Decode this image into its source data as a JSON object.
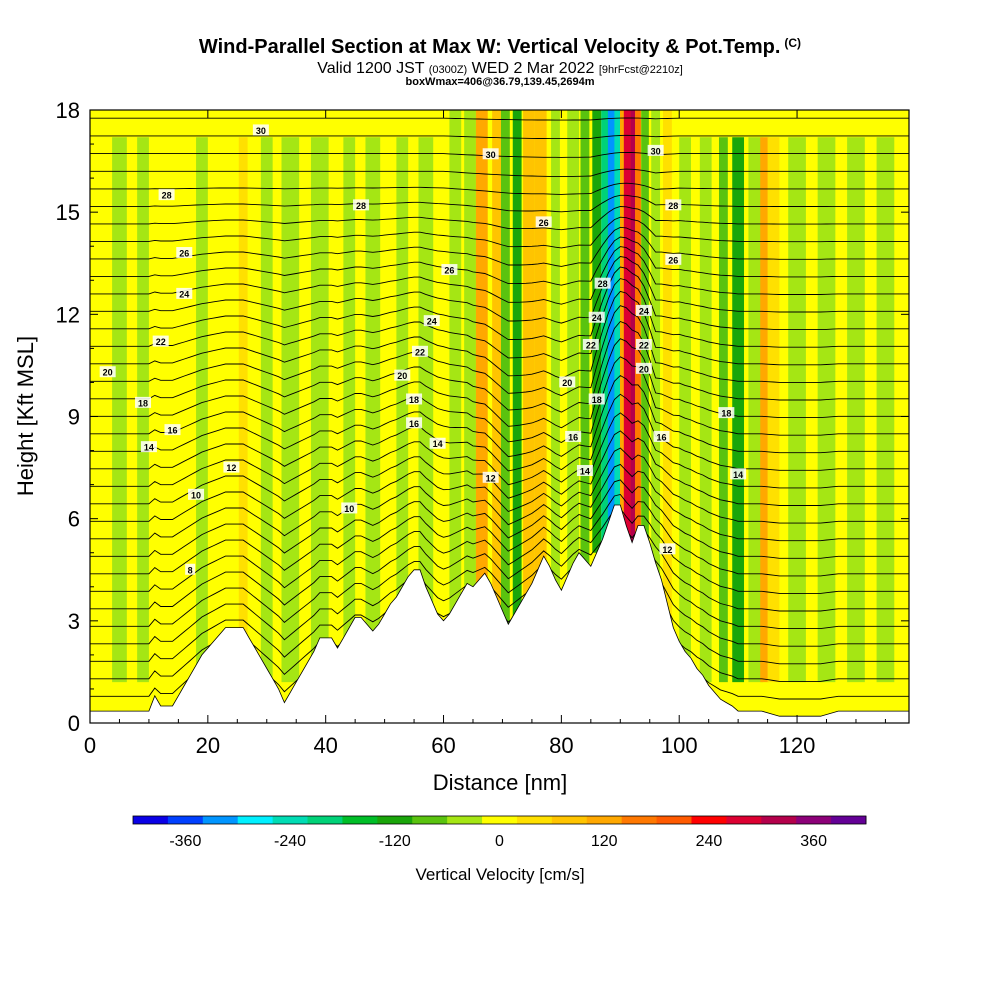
{
  "title": {
    "main": "Wind-Parallel Section at Max W: Vertical Velocity & Pot.Temp.",
    "copyright": "(C)",
    "valid_prefix": "Valid 1200 JST",
    "valid_utc": "(0300Z)",
    "valid_date": "WED 2 Mar 2022",
    "forecast_info": "[9hrFcst@2210z]",
    "box_info": "boxWmax=406@36.79,139.45,2694m"
  },
  "chart_data": {
    "type": "heatmap",
    "xlabel": "Distance [nm]",
    "ylabel": "Height [Kft MSL]",
    "xlim": [
      0,
      139
    ],
    "ylim": [
      0,
      18
    ],
    "x_ticks": [
      "0",
      "20",
      "40",
      "60",
      "80",
      "100",
      "120"
    ],
    "y_ticks": [
      "0",
      "3",
      "6",
      "9",
      "12",
      "15",
      "18"
    ],
    "colorbar": {
      "label": "Vertical Velocity [cm/s]",
      "tick_labels": [
        "-360",
        "-240",
        "-120",
        "0",
        "120",
        "240",
        "360"
      ],
      "colors": [
        "#0a00e6",
        "#0040ff",
        "#0095ff",
        "#00f0ff",
        "#00dcb4",
        "#00d278",
        "#00be28",
        "#1aa50a",
        "#5ac30f",
        "#a5e614",
        "#ffff00",
        "#ffe000",
        "#ffc400",
        "#ffa800",
        "#ff7800",
        "#ff5a00",
        "#ff0000",
        "#dc0032",
        "#b4004b",
        "#8c0078",
        "#640096"
      ]
    },
    "contour_labels": [
      {
        "text": "30",
        "x": 29,
        "y": 17.4
      },
      {
        "text": "28",
        "x": 13,
        "y": 15.5
      },
      {
        "text": "28",
        "x": 46,
        "y": 15.2
      },
      {
        "text": "26",
        "x": 16,
        "y": 13.8
      },
      {
        "text": "24",
        "x": 16,
        "y": 12.6
      },
      {
        "text": "22",
        "x": 12,
        "y": 11.2
      },
      {
        "text": "20",
        "x": 3,
        "y": 10.3
      },
      {
        "text": "18",
        "x": 9,
        "y": 9.4
      },
      {
        "text": "16",
        "x": 14,
        "y": 8.6
      },
      {
        "text": "14",
        "x": 10,
        "y": 8.1
      },
      {
        "text": "12",
        "x": 24,
        "y": 7.5
      },
      {
        "text": "10",
        "x": 18,
        "y": 6.7
      },
      {
        "text": "8",
        "x": 17,
        "y": 4.5
      },
      {
        "text": "10",
        "x": 44,
        "y": 6.3
      },
      {
        "text": "26",
        "x": 61,
        "y": 13.3
      },
      {
        "text": "24",
        "x": 58,
        "y": 11.8
      },
      {
        "text": "22",
        "x": 56,
        "y": 10.9
      },
      {
        "text": "20",
        "x": 53,
        "y": 10.2
      },
      {
        "text": "18",
        "x": 55,
        "y": 9.5
      },
      {
        "text": "16",
        "x": 55,
        "y": 8.8
      },
      {
        "text": "14",
        "x": 59,
        "y": 8.2
      },
      {
        "text": "12",
        "x": 68,
        "y": 7.2
      },
      {
        "text": "30",
        "x": 68,
        "y": 16.7
      },
      {
        "text": "26",
        "x": 77,
        "y": 14.7
      },
      {
        "text": "28",
        "x": 87,
        "y": 12.9
      },
      {
        "text": "24",
        "x": 86,
        "y": 11.9
      },
      {
        "text": "22",
        "x": 85,
        "y": 11.1
      },
      {
        "text": "20",
        "x": 81,
        "y": 10.0
      },
      {
        "text": "18",
        "x": 86,
        "y": 9.5
      },
      {
        "text": "16",
        "x": 82,
        "y": 8.4
      },
      {
        "text": "14",
        "x": 84,
        "y": 7.4
      },
      {
        "text": "30",
        "x": 96,
        "y": 16.8
      },
      {
        "text": "28",
        "x": 99,
        "y": 15.2
      },
      {
        "text": "26",
        "x": 99,
        "y": 13.6
      },
      {
        "text": "24",
        "x": 94,
        "y": 12.1
      },
      {
        "text": "22",
        "x": 94,
        "y": 11.1
      },
      {
        "text": "20",
        "x": 94,
        "y": 10.4
      },
      {
        "text": "18",
        "x": 108,
        "y": 9.1
      },
      {
        "text": "16",
        "x": 97,
        "y": 8.4
      },
      {
        "text": "14",
        "x": 110,
        "y": 7.3
      },
      {
        "text": "12",
        "x": 98,
        "y": 5.1
      }
    ],
    "velocity_bands": [
      {
        "x": 5,
        "w": 2.5,
        "v": -40
      },
      {
        "x": 9,
        "w": 2,
        "v": -30
      },
      {
        "x": 19,
        "w": 2,
        "v": -30
      },
      {
        "x": 26,
        "w": 1.5,
        "v": 40
      },
      {
        "x": 30,
        "w": 2,
        "v": -35
      },
      {
        "x": 34,
        "w": 3,
        "v": -30
      },
      {
        "x": 39,
        "w": 3,
        "v": -30
      },
      {
        "x": 44,
        "w": 2,
        "v": -25
      },
      {
        "x": 48,
        "w": 2.5,
        "v": -30
      },
      {
        "x": 53,
        "w": 2,
        "v": -35
      },
      {
        "x": 57,
        "w": 2.5,
        "v": -45
      },
      {
        "x": 62,
        "w": 2,
        "v": -40
      },
      {
        "x": 64.5,
        "w": 2,
        "v": -60
      },
      {
        "x": 66.5,
        "w": 2,
        "v": 100
      },
      {
        "x": 69,
        "w": 1.5,
        "v": 60
      },
      {
        "x": 70.5,
        "w": 1.5,
        "v": -90
      },
      {
        "x": 72.5,
        "w": 1.5,
        "v": -110
      },
      {
        "x": 74.5,
        "w": 2,
        "v": 90
      },
      {
        "x": 76.5,
        "w": 2,
        "v": 60
      },
      {
        "x": 79,
        "w": 1.5,
        "v": -60
      },
      {
        "x": 82,
        "w": 2,
        "v": -50
      },
      {
        "x": 84,
        "w": 1.5,
        "v": -70
      },
      {
        "x": 86,
        "w": 1.5,
        "v": -130
      },
      {
        "x": 87.5,
        "w": 1.5,
        "v": -200
      },
      {
        "x": 88.5,
        "w": 1.2,
        "v": -310
      },
      {
        "x": 89.5,
        "w": 1,
        "v": -240
      },
      {
        "x": 90.4,
        "w": 0.9,
        "v": 120
      },
      {
        "x": 91.2,
        "w": 1.2,
        "v": 260
      },
      {
        "x": 92.2,
        "w": 0.9,
        "v": 330
      },
      {
        "x": 93,
        "w": 1,
        "v": 150
      },
      {
        "x": 94.2,
        "w": 1.3,
        "v": -90
      },
      {
        "x": 96,
        "w": 1.5,
        "v": -50
      },
      {
        "x": 98,
        "w": 1.5,
        "v": 40
      },
      {
        "x": 101,
        "w": 2,
        "v": -40
      },
      {
        "x": 104.5,
        "w": 2,
        "v": -50
      },
      {
        "x": 107.5,
        "w": 1.5,
        "v": -80
      },
      {
        "x": 110,
        "w": 2,
        "v": -120
      },
      {
        "x": 113,
        "w": 2.5,
        "v": -60
      },
      {
        "x": 114.5,
        "w": 1.5,
        "v": 100
      },
      {
        "x": 116,
        "w": 2,
        "v": 50
      },
      {
        "x": 120,
        "w": 3,
        "v": -40
      },
      {
        "x": 125,
        "w": 3,
        "v": -30
      },
      {
        "x": 130,
        "w": 3,
        "v": -30
      },
      {
        "x": 135,
        "w": 3,
        "v": -30
      }
    ],
    "terrain_profile": [
      [
        0,
        0.35
      ],
      [
        10,
        0.35
      ],
      [
        11,
        0.8
      ],
      [
        12,
        0.5
      ],
      [
        14,
        0.5
      ],
      [
        15,
        0.8
      ],
      [
        16,
        1.1
      ],
      [
        17,
        1.4
      ],
      [
        18,
        1.7
      ],
      [
        19,
        2
      ],
      [
        20,
        2.2
      ],
      [
        21,
        2.4
      ],
      [
        22,
        2.6
      ],
      [
        23,
        2.8
      ],
      [
        26,
        2.8
      ],
      [
        27,
        2.5
      ],
      [
        28,
        2.2
      ],
      [
        29,
        1.9
      ],
      [
        30,
        1.6
      ],
      [
        31,
        1.3
      ],
      [
        32,
        1.0
      ],
      [
        33,
        0.6
      ],
      [
        34,
        0.9
      ],
      [
        35,
        1.2
      ],
      [
        36,
        1.5
      ],
      [
        37,
        1.8
      ],
      [
        38,
        2.1
      ],
      [
        39,
        2.5
      ],
      [
        41,
        2.5
      ],
      [
        42,
        2.2
      ],
      [
        43,
        2.5
      ],
      [
        44,
        2.8
      ],
      [
        45,
        3.1
      ],
      [
        46,
        3.1
      ],
      [
        47,
        2.9
      ],
      [
        48,
        2.7
      ],
      [
        49,
        2.9
      ],
      [
        50,
        3.2
      ],
      [
        51,
        3.5
      ],
      [
        52,
        3.7
      ],
      [
        53,
        4.0
      ],
      [
        54,
        4.3
      ],
      [
        55,
        4.5
      ],
      [
        56,
        4.5
      ],
      [
        57,
        4.0
      ],
      [
        58,
        3.6
      ],
      [
        59,
        3.2
      ],
      [
        60,
        3.0
      ],
      [
        61,
        3.2
      ],
      [
        62,
        3.5
      ],
      [
        63,
        3.8
      ],
      [
        64,
        4.1
      ],
      [
        65,
        4.0
      ],
      [
        66,
        4.2
      ],
      [
        67,
        4.4
      ],
      [
        68,
        4.1
      ],
      [
        69,
        3.7
      ],
      [
        70,
        3.3
      ],
      [
        71,
        2.9
      ],
      [
        72,
        3.2
      ],
      [
        73,
        3.5
      ],
      [
        74,
        3.8
      ],
      [
        75,
        4.1
      ],
      [
        76,
        4.5
      ],
      [
        77,
        4.9
      ],
      [
        78,
        4.6
      ],
      [
        79,
        4.2
      ],
      [
        80,
        3.9
      ],
      [
        81,
        4.3
      ],
      [
        82,
        4.7
      ],
      [
        83,
        5.0
      ],
      [
        84,
        4.8
      ],
      [
        85,
        4.6
      ],
      [
        86,
        5.0
      ],
      [
        87,
        5.4
      ],
      [
        88,
        5.9
      ],
      [
        89,
        6.4
      ],
      [
        90,
        6.4
      ],
      [
        91,
        5.8
      ],
      [
        92,
        5.3
      ],
      [
        93,
        5.8
      ],
      [
        94,
        5.8
      ],
      [
        95,
        5.3
      ],
      [
        96,
        4.7
      ],
      [
        97,
        4.2
      ],
      [
        98,
        3.5
      ],
      [
        99,
        2.8
      ],
      [
        100,
        2.4
      ],
      [
        101,
        2.1
      ],
      [
        102,
        1.9
      ],
      [
        103,
        1.6
      ],
      [
        104,
        1.4
      ],
      [
        105,
        1.1
      ],
      [
        106,
        0.9
      ],
      [
        107,
        0.7
      ],
      [
        108,
        0.6
      ],
      [
        109,
        0.5
      ],
      [
        110,
        0.35
      ],
      [
        114,
        0.35
      ],
      [
        117,
        0.2
      ],
      [
        124,
        0.2
      ],
      [
        127,
        0.35
      ],
      [
        139,
        0.35
      ]
    ]
  }
}
